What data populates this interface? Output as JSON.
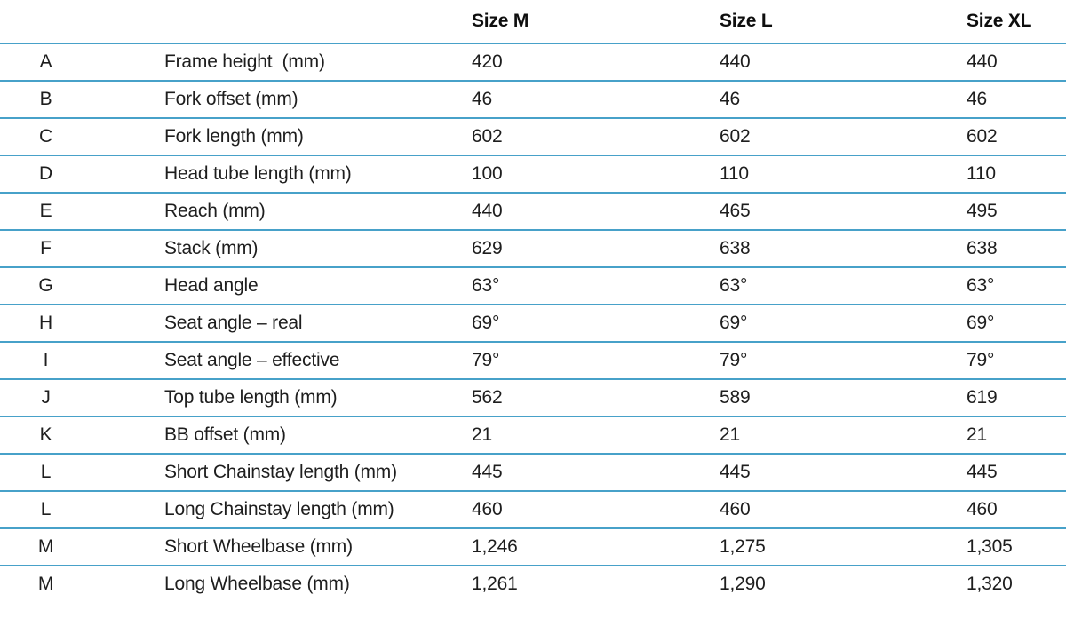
{
  "chart_data": {
    "type": "table",
    "title": "",
    "columns": [
      "Size M",
      "Size L",
      "Size XL"
    ],
    "rows": [
      {
        "letter": "A",
        "label": "Frame height  (mm)",
        "m": "420",
        "l": "440",
        "xl": "440"
      },
      {
        "letter": "B",
        "label": "Fork offset (mm)",
        "m": "46",
        "l": "46",
        "xl": "46"
      },
      {
        "letter": "C",
        "label": "Fork length (mm)",
        "m": "602",
        "l": "602",
        "xl": "602"
      },
      {
        "letter": "D",
        "label": "Head tube length (mm)",
        "m": "100",
        "l": "110",
        "xl": "110"
      },
      {
        "letter": "E",
        "label": "Reach (mm)",
        "m": "440",
        "l": "465",
        "xl": "495"
      },
      {
        "letter": "F",
        "label": "Stack (mm)",
        "m": "629",
        "l": "638",
        "xl": "638"
      },
      {
        "letter": "G",
        "label": "Head angle",
        "m": "63°",
        "l": "63°",
        "xl": "63°"
      },
      {
        "letter": "H",
        "label": "Seat angle – real",
        "m": "69°",
        "l": "69°",
        "xl": "69°"
      },
      {
        "letter": "I",
        "label": "Seat angle – effective",
        "m": "79°",
        "l": "79°",
        "xl": "79°"
      },
      {
        "letter": "J",
        "label": "Top tube length (mm)",
        "m": "562",
        "l": "589",
        "xl": "619"
      },
      {
        "letter": "K",
        "label": "BB offset (mm)",
        "m": "21",
        "l": "21",
        "xl": "21"
      },
      {
        "letter": "L",
        "label": "Short Chainstay length (mm)",
        "m": "445",
        "l": "445",
        "xl": "445"
      },
      {
        "letter": "L",
        "label": "Long Chainstay length (mm)",
        "m": "460",
        "l": "460",
        "xl": "460"
      },
      {
        "letter": "M",
        "label": "Short Wheelbase (mm)",
        "m": "1,246",
        "l": "1,275",
        "xl": "1,305"
      },
      {
        "letter": "M",
        "label": "Long Wheelbase (mm)",
        "m": "1,261",
        "l": "1,290",
        "xl": "1,320"
      }
    ]
  },
  "colors": {
    "divider": "#47a1c9",
    "text": "#1e1e1e",
    "header_text": "#0e0e0e",
    "background": "#ffffff"
  }
}
